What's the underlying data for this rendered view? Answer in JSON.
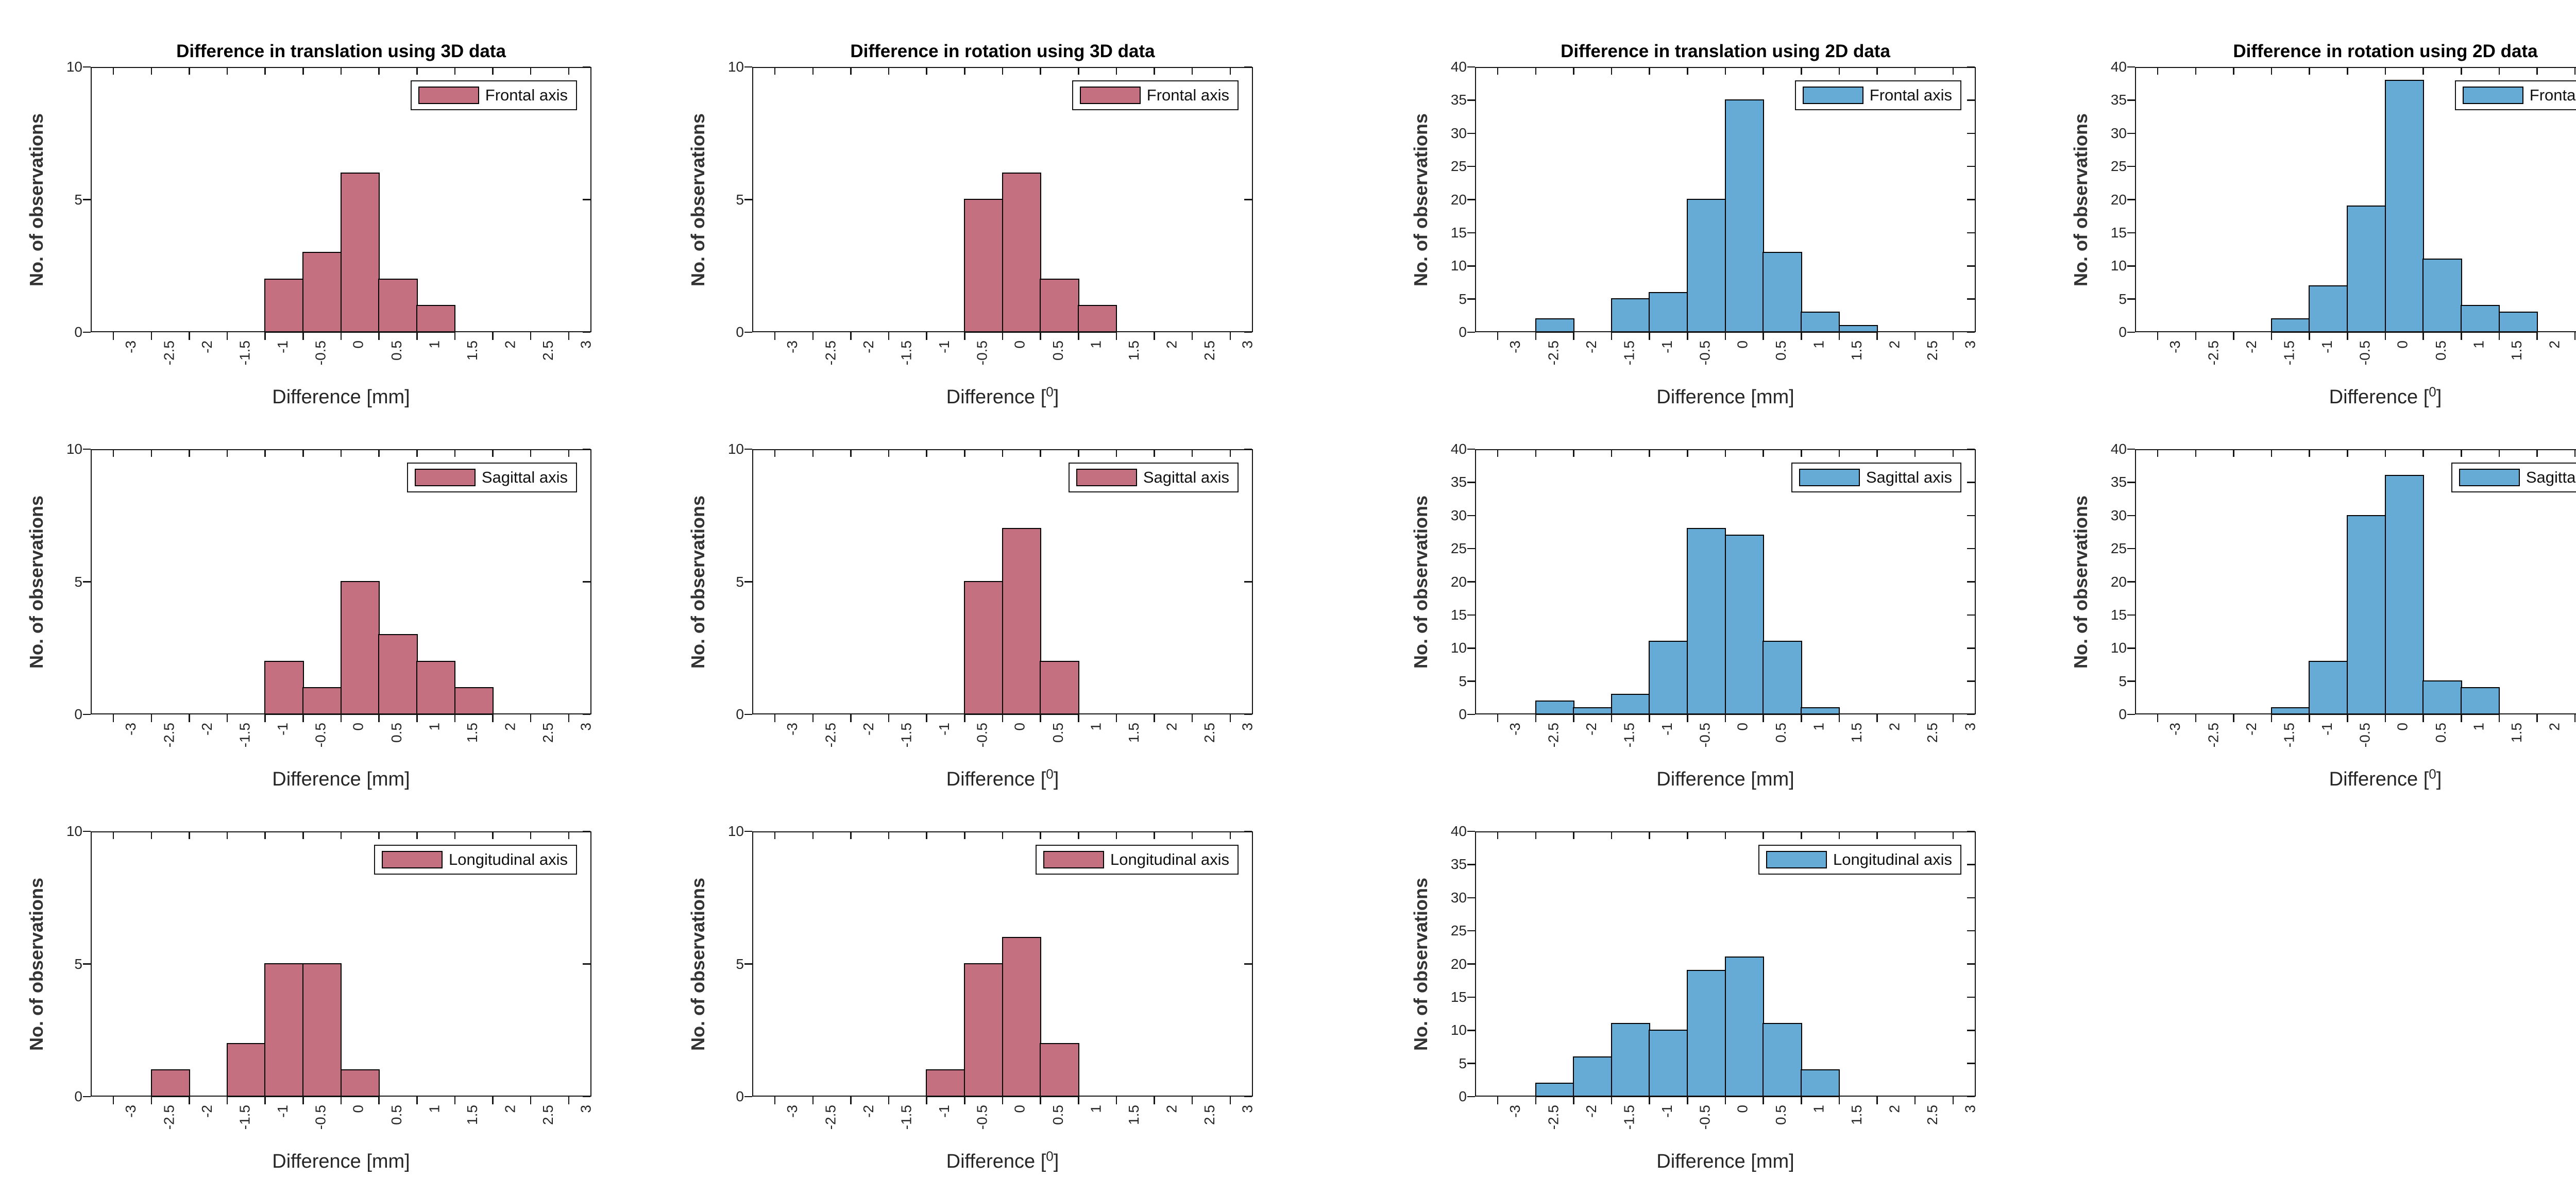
{
  "figure": {
    "background": "#ffffff",
    "axis_color": "#151515",
    "tick_text_color": "#262626",
    "title_color": "#000000",
    "red_series_color": "#C57080",
    "blue_series_color": "#66AAD6"
  },
  "chart_data": [
    {
      "id": "translation-3d-frontal",
      "type": "bar",
      "row": 0,
      "col": 0,
      "title": "Difference in translation using 3D data",
      "legend": {
        "label": "Frontal axis",
        "position": "top-right"
      },
      "bar_color": "#C57080",
      "bar_edge_color": "#000000",
      "xlabel": {
        "pre": "Difference [mm]",
        "sup": "",
        "post": ""
      },
      "ylabel": "No. of observations",
      "xlim": [
        -3.3,
        3.3
      ],
      "xticks": {
        "min": -3,
        "max": 3,
        "step": 0.5
      },
      "ylim": [
        0,
        10
      ],
      "ytick_step": 5,
      "grid": false,
      "bins": {
        "start": -1,
        "width": 0.5,
        "counts": [
          2,
          3,
          6,
          2,
          1
        ]
      }
    },
    {
      "id": "rotation-3d-frontal",
      "type": "bar",
      "row": 0,
      "col": 1,
      "title": "Difference in rotation using 3D data",
      "legend": {
        "label": "Frontal axis",
        "position": "top-right"
      },
      "bar_color": "#C57080",
      "bar_edge_color": "#000000",
      "xlabel": {
        "pre": "Difference [",
        "sup": "0",
        "post": "]"
      },
      "ylabel": "No. of observations",
      "xlim": [
        -3.3,
        3.3
      ],
      "xticks": {
        "min": -3,
        "max": 3,
        "step": 0.5
      },
      "ylim": [
        0,
        10
      ],
      "ytick_step": 5,
      "grid": false,
      "bins": {
        "start": -0.5,
        "width": 0.5,
        "counts": [
          5,
          6,
          2,
          1
        ]
      }
    },
    {
      "id": "translation-2d-frontal",
      "type": "bar",
      "row": 0,
      "col": 2,
      "title": "Difference in translation using 2D data",
      "legend": {
        "label": "Frontal axis",
        "position": "top-right"
      },
      "bar_color": "#66AAD6",
      "bar_edge_color": "#000000",
      "xlabel": {
        "pre": "Difference [mm]",
        "sup": "",
        "post": ""
      },
      "ylabel": "No. of observations",
      "xlim": [
        -3.3,
        3.3
      ],
      "xticks": {
        "min": -3,
        "max": 3,
        "step": 0.5
      },
      "ylim": [
        0,
        40
      ],
      "ytick_step": 5,
      "grid": false,
      "bins": {
        "start": -2.5,
        "width": 0.5,
        "counts": [
          2,
          0,
          5,
          6,
          20,
          35,
          12,
          3,
          1
        ]
      }
    },
    {
      "id": "rotation-2d-frontal",
      "type": "bar",
      "row": 0,
      "col": 3,
      "title": "Difference in rotation using 2D data",
      "legend": {
        "label": "Frontal axis",
        "position": "top-right"
      },
      "bar_color": "#66AAD6",
      "bar_edge_color": "#000000",
      "xlabel": {
        "pre": "Difference [",
        "sup": "0",
        "post": "]"
      },
      "ylabel": "No. of observations",
      "xlim": [
        -3.3,
        3.3
      ],
      "xticks": {
        "min": -3,
        "max": 3,
        "step": 0.5
      },
      "ylim": [
        0,
        40
      ],
      "ytick_step": 5,
      "grid": false,
      "bins": {
        "start": -1.5,
        "width": 0.5,
        "counts": [
          2,
          7,
          19,
          38,
          11,
          4,
          3
        ]
      }
    },
    {
      "id": "translation-3d-sagittal",
      "type": "bar",
      "row": 1,
      "col": 0,
      "title": "",
      "legend": {
        "label": "Sagittal axis",
        "position": "top-right"
      },
      "bar_color": "#C57080",
      "bar_edge_color": "#000000",
      "xlabel": {
        "pre": "Difference [mm]",
        "sup": "",
        "post": ""
      },
      "ylabel": "No. of observations",
      "xlim": [
        -3.3,
        3.3
      ],
      "xticks": {
        "min": -3,
        "max": 3,
        "step": 0.5
      },
      "ylim": [
        0,
        10
      ],
      "ytick_step": 5,
      "grid": false,
      "bins": {
        "start": -1,
        "width": 0.5,
        "counts": [
          2,
          1,
          5,
          3,
          2,
          1
        ]
      }
    },
    {
      "id": "rotation-3d-sagittal",
      "type": "bar",
      "row": 1,
      "col": 1,
      "title": "",
      "legend": {
        "label": "Sagittal axis",
        "position": "top-right"
      },
      "bar_color": "#C57080",
      "bar_edge_color": "#000000",
      "xlabel": {
        "pre": "Difference [",
        "sup": "0",
        "post": "]"
      },
      "ylabel": "No. of observations",
      "xlim": [
        -3.3,
        3.3
      ],
      "xticks": {
        "min": -3,
        "max": 3,
        "step": 0.5
      },
      "ylim": [
        0,
        10
      ],
      "ytick_step": 5,
      "grid": false,
      "bins": {
        "start": -0.5,
        "width": 0.5,
        "counts": [
          5,
          7,
          2
        ]
      }
    },
    {
      "id": "translation-2d-sagittal",
      "type": "bar",
      "row": 1,
      "col": 2,
      "title": "",
      "legend": {
        "label": "Sagittal axis",
        "position": "top-right"
      },
      "bar_color": "#66AAD6",
      "bar_edge_color": "#000000",
      "xlabel": {
        "pre": "Difference [mm]",
        "sup": "",
        "post": ""
      },
      "ylabel": "No. of observations",
      "xlim": [
        -3.3,
        3.3
      ],
      "xticks": {
        "min": -3,
        "max": 3,
        "step": 0.5
      },
      "ylim": [
        0,
        40
      ],
      "ytick_step": 5,
      "grid": false,
      "bins": {
        "start": -2.5,
        "width": 0.5,
        "counts": [
          2,
          1,
          3,
          11,
          28,
          27,
          11,
          1
        ]
      }
    },
    {
      "id": "rotation-2d-sagittal",
      "type": "bar",
      "row": 1,
      "col": 3,
      "title": "",
      "legend": {
        "label": "Sagittal axis",
        "position": "top-right"
      },
      "bar_color": "#66AAD6",
      "bar_edge_color": "#000000",
      "xlabel": {
        "pre": "Difference [",
        "sup": "0",
        "post": "]"
      },
      "ylabel": "No. of observations",
      "xlim": [
        -3.3,
        3.3
      ],
      "xticks": {
        "min": -3,
        "max": 3,
        "step": 0.5
      },
      "ylim": [
        0,
        40
      ],
      "ytick_step": 5,
      "grid": false,
      "bins": {
        "start": -1.5,
        "width": 0.5,
        "counts": [
          1,
          8,
          30,
          36,
          5,
          4
        ]
      }
    },
    {
      "id": "translation-3d-longitudinal",
      "type": "bar",
      "row": 2,
      "col": 0,
      "title": "",
      "legend": {
        "label": "Longitudinal axis",
        "position": "top-right"
      },
      "bar_color": "#C57080",
      "bar_edge_color": "#000000",
      "xlabel": {
        "pre": "Difference [mm]",
        "sup": "",
        "post": ""
      },
      "ylabel": "No. of observations",
      "xlim": [
        -3.3,
        3.3
      ],
      "xticks": {
        "min": -3,
        "max": 3,
        "step": 0.5
      },
      "ylim": [
        0,
        10
      ],
      "ytick_step": 5,
      "grid": false,
      "bins": {
        "start": -2.5,
        "width": 0.5,
        "counts": [
          1,
          0,
          2,
          5,
          5,
          1
        ]
      }
    },
    {
      "id": "rotation-3d-longitudinal",
      "type": "bar",
      "row": 2,
      "col": 1,
      "title": "",
      "legend": {
        "label": "Longitudinal axis",
        "position": "top-right"
      },
      "bar_color": "#C57080",
      "bar_edge_color": "#000000",
      "xlabel": {
        "pre": "Difference [",
        "sup": "0",
        "post": "]"
      },
      "ylabel": "No. of observations",
      "xlim": [
        -3.3,
        3.3
      ],
      "xticks": {
        "min": -3,
        "max": 3,
        "step": 0.5
      },
      "ylim": [
        0,
        10
      ],
      "ytick_step": 5,
      "grid": false,
      "bins": {
        "start": -1,
        "width": 0.5,
        "counts": [
          1,
          5,
          6,
          2
        ]
      }
    },
    {
      "id": "translation-2d-longitudinal",
      "type": "bar",
      "row": 2,
      "col": 2,
      "title": "",
      "legend": {
        "label": "Longitudinal axis",
        "position": "top-right"
      },
      "bar_color": "#66AAD6",
      "bar_edge_color": "#000000",
      "xlabel": {
        "pre": "Difference [mm]",
        "sup": "",
        "post": ""
      },
      "ylabel": "No. of observations",
      "xlim": [
        -3.3,
        3.3
      ],
      "xticks": {
        "min": -3,
        "max": 3,
        "step": 0.5
      },
      "ylim": [
        0,
        40
      ],
      "ytick_step": 5,
      "grid": false,
      "bins": {
        "start": -2.5,
        "width": 0.5,
        "counts": [
          2,
          6,
          11,
          10,
          19,
          21,
          11,
          4
        ]
      }
    }
  ]
}
